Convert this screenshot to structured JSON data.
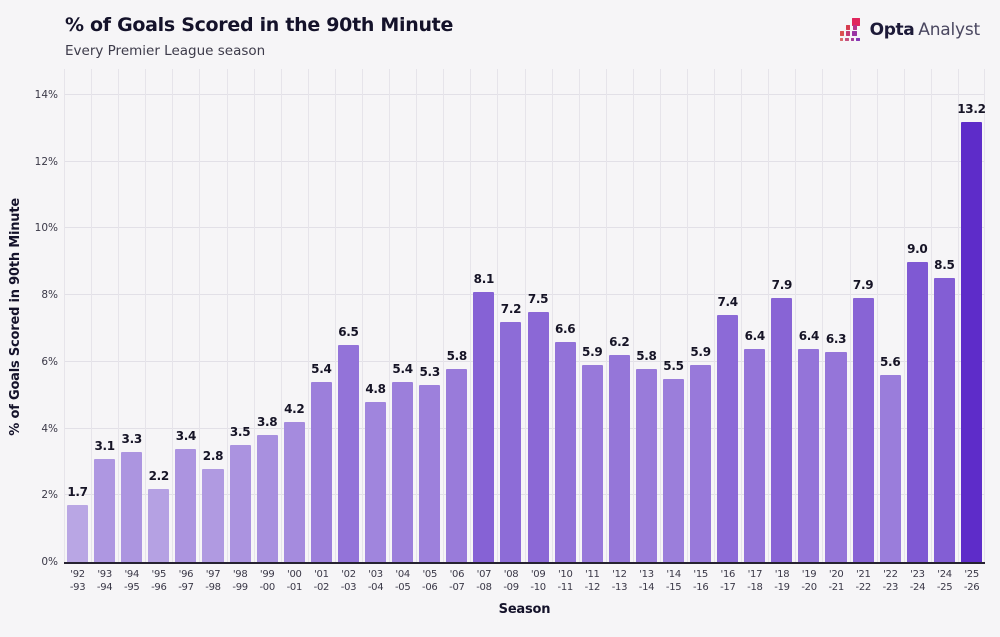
{
  "header": {
    "logo": {
      "brand_bold": "Opta",
      "brand_light": "Analyst",
      "icon_colors": [
        "#e0245c",
        "#d63c4f",
        "#b5348c",
        "#da5050",
        "#c43a74",
        "#9a35a3",
        "#d96a6a",
        "#c74f7e",
        "#a53f9b",
        "#8636b4"
      ]
    }
  },
  "chart_data": {
    "type": "bar",
    "title": "% of Goals Scored in the 90th Minute",
    "subtitle": "Every Premier League season",
    "xlabel": "Season",
    "ylabel": "% of Goals Scored in 90th Minute",
    "categories": [
      "'92-93",
      "'93-94",
      "'94-95",
      "'95-96",
      "'96-97",
      "'97-98",
      "'98-99",
      "'99-00",
      "'00-01",
      "'01-02",
      "'02-03",
      "'03-04",
      "'04-05",
      "'05-06",
      "'06-07",
      "'07-08",
      "'08-09",
      "'09-10",
      "'10-11",
      "'11-12",
      "'12-13",
      "'13-14",
      "'14-15",
      "'15-16",
      "'16-17",
      "'17-18",
      "'18-19",
      "'19-20",
      "'20-21",
      "'21-22",
      "'22-23",
      "'23-24",
      "'24-25",
      "'25-26"
    ],
    "values": [
      1.7,
      3.1,
      3.3,
      2.2,
      3.4,
      2.8,
      3.5,
      3.8,
      4.2,
      5.4,
      6.5,
      4.8,
      5.4,
      5.3,
      5.8,
      8.1,
      7.2,
      7.5,
      6.6,
      5.9,
      6.2,
      5.8,
      5.5,
      5.9,
      7.4,
      6.4,
      7.9,
      6.4,
      6.3,
      7.9,
      5.6,
      9.0,
      8.5,
      13.2
    ],
    "ylim": [
      0,
      14
    ],
    "ytick_step": 2,
    "ytick_labels": [
      "0%",
      "2%",
      "4%",
      "6%",
      "8%",
      "10%",
      "12%",
      "14%"
    ],
    "grid": true,
    "legend": "none",
    "colors": {
      "bar_low": "#b9a6e4",
      "bar_high": "#5e2cc9",
      "grid": "#e2e0e7",
      "axis": "#262231",
      "background": "#f6f5f7",
      "label": "#161426"
    }
  }
}
